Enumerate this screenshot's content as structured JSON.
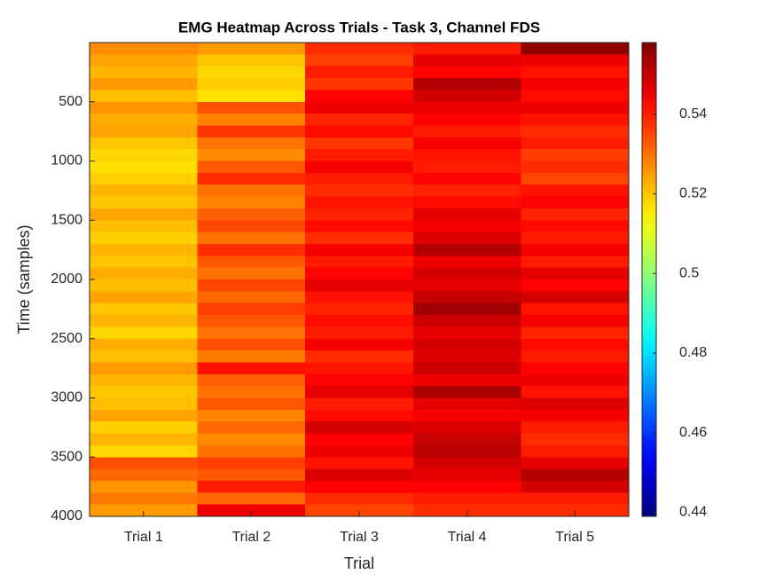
{
  "chart_data": {
    "type": "heatmap",
    "title": "EMG Heatmap Across Trials - Task 3, Channel FDS",
    "xlabel": "Trial",
    "ylabel": "Time (samples)",
    "categories": [
      "Trial 1",
      "Trial 2",
      "Trial 3",
      "Trial 4",
      "Trial 5"
    ],
    "ybins": [
      0,
      100,
      200,
      300,
      400,
      500,
      600,
      700,
      800,
      900,
      1000,
      1100,
      1200,
      1300,
      1400,
      1500,
      1600,
      1700,
      1800,
      1900,
      2000,
      2100,
      2200,
      2300,
      2400,
      2500,
      2600,
      2700,
      2800,
      2900,
      3000,
      3100,
      3200,
      3300,
      3400,
      3500,
      3600,
      3700,
      3800,
      3900,
      4000
    ],
    "values": [
      [
        0.527,
        0.524,
        0.522,
        0.525,
        0.521,
        0.526,
        0.523,
        0.524,
        0.52,
        0.518,
        0.517,
        0.519,
        0.522,
        0.52,
        0.524,
        0.521,
        0.519,
        0.522,
        0.52,
        0.523,
        0.521,
        0.524,
        0.52,
        0.522,
        0.518,
        0.523,
        0.521,
        0.525,
        0.522,
        0.52,
        0.521,
        0.524,
        0.519,
        0.522,
        0.518,
        0.534,
        0.531,
        0.526,
        0.529,
        0.525
      ],
      [
        0.525,
        0.52,
        0.518,
        0.519,
        0.517,
        0.534,
        0.528,
        0.537,
        0.53,
        0.527,
        0.533,
        0.538,
        0.53,
        0.528,
        0.532,
        0.535,
        0.53,
        0.538,
        0.533,
        0.53,
        0.535,
        0.531,
        0.536,
        0.533,
        0.53,
        0.534,
        0.529,
        0.541,
        0.532,
        0.53,
        0.533,
        0.528,
        0.531,
        0.527,
        0.53,
        0.536,
        0.533,
        0.54,
        0.531,
        0.545
      ],
      [
        0.538,
        0.536,
        0.54,
        0.537,
        0.543,
        0.545,
        0.539,
        0.542,
        0.537,
        0.54,
        0.544,
        0.54,
        0.538,
        0.541,
        0.539,
        0.542,
        0.538,
        0.544,
        0.54,
        0.543,
        0.546,
        0.541,
        0.539,
        0.542,
        0.54,
        0.544,
        0.538,
        0.541,
        0.543,
        0.546,
        0.54,
        0.542,
        0.548,
        0.543,
        0.545,
        0.541,
        0.547,
        0.543,
        0.538,
        0.535
      ],
      [
        0.54,
        0.546,
        0.543,
        0.552,
        0.548,
        0.545,
        0.543,
        0.54,
        0.544,
        0.541,
        0.54,
        0.543,
        0.539,
        0.542,
        0.546,
        0.544,
        0.547,
        0.552,
        0.545,
        0.548,
        0.546,
        0.55,
        0.554,
        0.549,
        0.546,
        0.548,
        0.547,
        0.549,
        0.545,
        0.553,
        0.546,
        0.544,
        0.547,
        0.55,
        0.551,
        0.548,
        0.546,
        0.543,
        0.54,
        0.538
      ],
      [
        0.556,
        0.545,
        0.541,
        0.544,
        0.542,
        0.545,
        0.541,
        0.538,
        0.54,
        0.536,
        0.538,
        0.535,
        0.541,
        0.543,
        0.539,
        0.542,
        0.54,
        0.544,
        0.54,
        0.546,
        0.543,
        0.548,
        0.541,
        0.544,
        0.539,
        0.542,
        0.54,
        0.543,
        0.545,
        0.541,
        0.547,
        0.544,
        0.54,
        0.538,
        0.54,
        0.546,
        0.552,
        0.548,
        0.54,
        0.538
      ]
    ],
    "ylim": [
      0,
      4000
    ],
    "yreverse": true,
    "yticks": [
      500,
      1000,
      1500,
      2000,
      2500,
      3000,
      3500,
      4000
    ],
    "colormap": "jet",
    "clim": [
      0.439,
      0.558
    ],
    "cticks": [
      0.44,
      0.46,
      0.48,
      0.5,
      0.52,
      0.54
    ]
  }
}
